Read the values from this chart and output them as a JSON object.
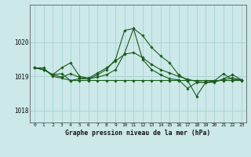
{
  "xlabel": "Graphe pression niveau de la mer (hPa)",
  "bg_color": "#cce8e8",
  "grid_color": "#aad4d4",
  "line_color": "#1a5c1a",
  "ylim": [
    1017.65,
    1021.1
  ],
  "yticks": [
    1018,
    1019,
    1020
  ],
  "xticks": [
    0,
    1,
    2,
    3,
    4,
    5,
    6,
    7,
    8,
    9,
    10,
    11,
    12,
    13,
    14,
    15,
    16,
    17,
    18,
    19,
    20,
    21,
    22,
    23
  ],
  "series": [
    [
      1019.25,
      1019.25,
      1019.0,
      1018.95,
      1018.88,
      1018.88,
      1018.88,
      1018.88,
      1018.88,
      1018.88,
      1018.88,
      1018.88,
      1018.88,
      1018.88,
      1018.88,
      1018.88,
      1018.88,
      1018.88,
      1018.88,
      1018.88,
      1018.88,
      1018.88,
      1018.88,
      1018.88
    ],
    [
      1019.25,
      1019.2,
      1019.05,
      1019.25,
      1019.4,
      1019.0,
      1018.95,
      1019.1,
      1019.25,
      1019.45,
      1019.65,
      1019.7,
      1019.55,
      1019.35,
      1019.2,
      1019.1,
      1019.0,
      1018.92,
      1018.85,
      1018.82,
      1018.85,
      1018.9,
      1018.95,
      1018.9
    ],
    [
      1019.25,
      1019.2,
      1019.05,
      1018.98,
      1019.08,
      1018.97,
      1018.92,
      1019.05,
      1019.2,
      1019.5,
      1020.35,
      1020.4,
      1020.2,
      1019.85,
      1019.6,
      1019.4,
      1019.05,
      1018.88,
      1018.42,
      1018.82,
      1018.83,
      1018.93,
      1019.05,
      1018.9
    ],
    [
      1019.25,
      1019.2,
      1019.05,
      1019.08,
      1018.88,
      1018.93,
      1018.93,
      1018.98,
      1019.05,
      1019.2,
      1019.68,
      1020.4,
      1019.5,
      1019.2,
      1019.05,
      1018.93,
      1018.9,
      1018.65,
      1018.82,
      1018.83,
      1018.87,
      1019.08,
      1018.9,
      1018.9
    ]
  ]
}
